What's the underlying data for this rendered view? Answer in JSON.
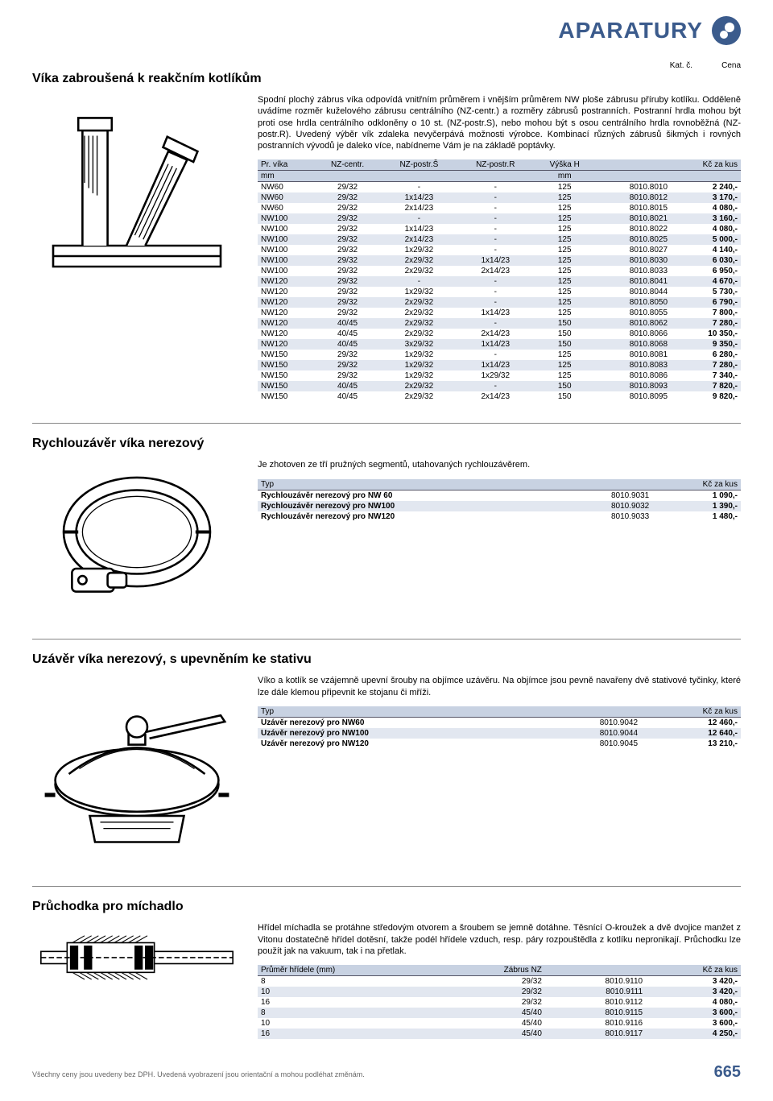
{
  "header": {
    "title": "APARATURY"
  },
  "topMeta": {
    "katc": "Kat. č.",
    "cena": "Cena"
  },
  "sections": {
    "vika": {
      "title": "Víka zabroušená k reakčním kotlíkům",
      "desc": "Spodní plochý zábrus víka odpovídá vnitřním průměrem i vnějším průměrem NW ploše zábrusu příruby kotlíku. Odděleně uvádíme rozměr kuželového zábrusu centrálního (NZ-centr.) a rozměry zábrusů postranních. Postranní hrdla mohou být proti ose hrdla centrálního odkloněny o 10 st. (NZ-postr.S), nebo mohou být s osou centrálního hrdla rovnoběžná (NZ-postr.R). Uvedený výběr vík zdaleka nevyčerpává možnosti výrobce. Kombinací různých zábrusů šikmých i rovných postranních vývodů je daleko více, nabídneme Vám je na základě poptávky.",
      "columns": [
        "Pr. víka",
        "NZ-centr.",
        "NZ-postr.Š",
        "NZ-postr.R",
        "Výška H",
        "",
        "Kč za kus"
      ],
      "unitRow": [
        "mm",
        "",
        "",
        "",
        "mm",
        "",
        ""
      ],
      "rows": [
        [
          "NW60",
          "29/32",
          "-",
          "-",
          "125",
          "8010.8010",
          "2 240,-"
        ],
        [
          "NW60",
          "29/32",
          "1x14/23",
          "-",
          "125",
          "8010.8012",
          "3 170,-"
        ],
        [
          "NW60",
          "29/32",
          "2x14/23",
          "-",
          "125",
          "8010.8015",
          "4 080,-"
        ],
        [
          "NW100",
          "29/32",
          "-",
          "-",
          "125",
          "8010.8021",
          "3 160,-"
        ],
        [
          "NW100",
          "29/32",
          "1x14/23",
          "-",
          "125",
          "8010.8022",
          "4 080,-"
        ],
        [
          "NW100",
          "29/32",
          "2x14/23",
          "-",
          "125",
          "8010.8025",
          "5 000,-"
        ],
        [
          "NW100",
          "29/32",
          "1x29/32",
          "-",
          "125",
          "8010.8027",
          "4 140,-"
        ],
        [
          "NW100",
          "29/32",
          "2x29/32",
          "1x14/23",
          "125",
          "8010.8030",
          "6 030,-"
        ],
        [
          "NW100",
          "29/32",
          "2x29/32",
          "2x14/23",
          "125",
          "8010.8033",
          "6 950,-"
        ],
        [
          "NW120",
          "29/32",
          "-",
          "-",
          "125",
          "8010.8041",
          "4 670,-"
        ],
        [
          "NW120",
          "29/32",
          "1x29/32",
          "-",
          "125",
          "8010.8044",
          "5 730,-"
        ],
        [
          "NW120",
          "29/32",
          "2x29/32",
          "-",
          "125",
          "8010.8050",
          "6 790,-"
        ],
        [
          "NW120",
          "29/32",
          "2x29/32",
          "1x14/23",
          "125",
          "8010.8055",
          "7 800,-"
        ],
        [
          "NW120",
          "40/45",
          "2x29/32",
          "-",
          "150",
          "8010.8062",
          "7 280,-"
        ],
        [
          "NW120",
          "40/45",
          "2x29/32",
          "2x14/23",
          "150",
          "8010.8066",
          "10 350,-"
        ],
        [
          "NW120",
          "40/45",
          "3x29/32",
          "1x14/23",
          "150",
          "8010.8068",
          "9 350,-"
        ],
        [
          "NW150",
          "29/32",
          "1x29/32",
          "-",
          "125",
          "8010.8081",
          "6 280,-"
        ],
        [
          "NW150",
          "29/32",
          "1x29/32",
          "1x14/23",
          "125",
          "8010.8083",
          "7 280,-"
        ],
        [
          "NW150",
          "29/32",
          "1x29/32",
          "1x29/32",
          "125",
          "8010.8086",
          "7 340,-"
        ],
        [
          "NW150",
          "40/45",
          "2x29/32",
          "-",
          "150",
          "8010.8093",
          "7 820,-"
        ],
        [
          "NW150",
          "40/45",
          "2x29/32",
          "2x14/23",
          "150",
          "8010.8095",
          "9 820,-"
        ]
      ]
    },
    "rychlo": {
      "title": "Rychlouzávěr víka nerezový",
      "desc": "Je zhotoven ze tří pružných segmentů, utahovaných rychlouzávěrem.",
      "columns": [
        "Typ",
        "",
        "Kč za kus"
      ],
      "rows": [
        [
          "Rychlouzávěr nerezový pro NW 60",
          "8010.9031",
          "1 090,-"
        ],
        [
          "Rychlouzávěr nerezový pro NW100",
          "8010.9032",
          "1 390,-"
        ],
        [
          "Rychlouzávěr nerezový pro NW120",
          "8010.9033",
          "1 480,-"
        ]
      ]
    },
    "uzaver": {
      "title": "Uzávěr víka nerezový, s upevněním ke stativu",
      "desc": "Víko a kotlík se vzájemně upevní šrouby na objímce uzávěru. Na objímce jsou pevně navařeny dvě stativové tyčinky, které lze dále klemou připevnit ke stojanu či mříži.",
      "columns": [
        "Typ",
        "",
        "Kč za kus"
      ],
      "rows": [
        [
          "Uzávěr nerezový pro NW60",
          "8010.9042",
          "12 460,-"
        ],
        [
          "Uzávěr nerezový pro NW100",
          "8010.9044",
          "12 640,-"
        ],
        [
          "Uzávěr nerezový pro NW120",
          "8010.9045",
          "13 210,-"
        ]
      ]
    },
    "pruchodka": {
      "title": "Průchodka pro míchadlo",
      "desc": "Hřídel míchadla se protáhne středovým otvorem a šroubem se jemně dotáhne. Těsnící O-kroužek a dvě dvojice manžet z Vitonu dostatečně hřídel dotěsní, takže podél hřídele vzduch, resp. páry rozpouštědla z kotlíku nepronikají. Průchodku lze použít jak na vakuum, tak i na přetlak.",
      "columns": [
        "Průměr hřídele (mm)",
        "Zábrus NZ",
        "",
        "Kč za kus"
      ],
      "rows": [
        [
          "8",
          "29/32",
          "8010.9110",
          "3 420,-"
        ],
        [
          "10",
          "29/32",
          "8010.9111",
          "3 420,-"
        ],
        [
          "16",
          "29/32",
          "8010.9112",
          "4 080,-"
        ],
        [
          "8",
          "45/40",
          "8010.9115",
          "3 600,-"
        ],
        [
          "10",
          "45/40",
          "8010.9116",
          "3 600,-"
        ],
        [
          "16",
          "45/40",
          "8010.9117",
          "4 250,-"
        ]
      ]
    }
  },
  "footer": {
    "note": "Všechny ceny jsou uvedeny bez DPH. Uvedená vyobrazení jsou orientační a mohou podléhat změnám.",
    "page": "665"
  },
  "colors": {
    "brand": "#3b5b8c",
    "tableHeader": "#c8d2e2",
    "rowAlt": "#e2e7f0"
  }
}
